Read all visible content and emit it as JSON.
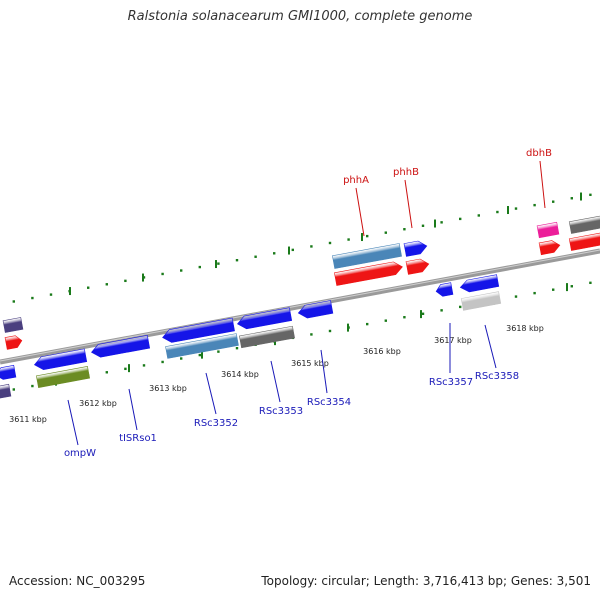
{
  "title": "Ralstonia solanacearum GMI1000, complete genome",
  "footer": {
    "accession": "Accession: NC_003295",
    "summary": "Topology: circular; Length: 3,716,413 bp; Genes: 3,501"
  },
  "colors": {
    "blue": "#1515e8",
    "red": "#ee1515",
    "steel": "#4a86b8",
    "gray": "#666666",
    "lightgray": "#c4c4c4",
    "olive": "#6b8c23",
    "magenta": "#ec1e9a",
    "purple": "#4a3f7f",
    "ticks": "#1a7a1a",
    "backbone": "#8a8a8a",
    "blue_label": "#1a1ab8",
    "red_label": "#cc1111"
  },
  "scale_labels": [
    "3611 kbp",
    "3612 kbp",
    "3613 kbp",
    "3614 kbp",
    "3615 kbp",
    "3616 kbp",
    "3617 kbp",
    "3618 kbp"
  ],
  "gene_labels_below": [
    "ompW",
    "tISRso1",
    "RSc3352",
    "RSc3353",
    "RSc3354",
    "RSc3357",
    "RSc3358"
  ],
  "gene_labels_above": [
    "phhA",
    "phhB",
    "dbhB"
  ]
}
